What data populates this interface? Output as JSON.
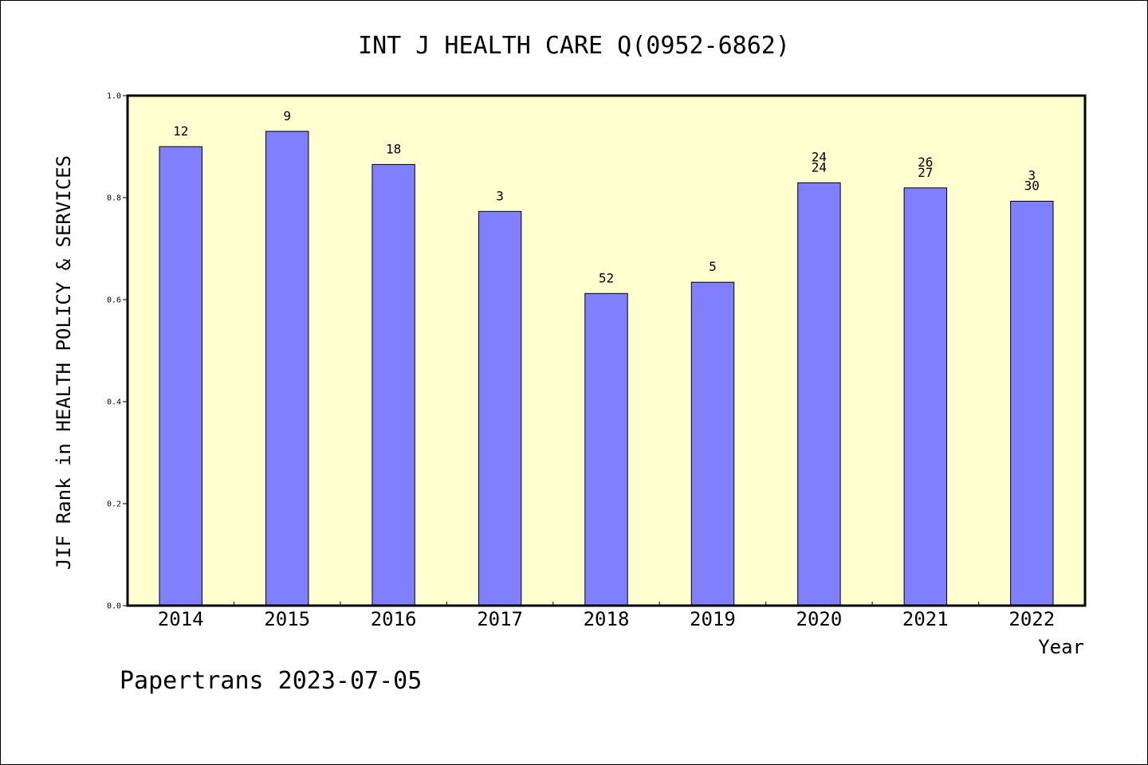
{
  "chart_data": {
    "type": "bar",
    "title": "INT J HEALTH CARE Q(0952-6862)",
    "ylabel": "JIF Rank in HEALTH POLICY & SERVICES",
    "xlabel": "Year",
    "ylim": [
      0,
      1.0
    ],
    "yticks": [
      "0.0",
      "0.2",
      "0.4",
      "0.6",
      "0.8",
      "1.0"
    ],
    "categories": [
      "2014",
      "2015",
      "2016",
      "2017",
      "2018",
      "2019",
      "2020",
      "2021",
      "2022"
    ],
    "values": [
      0.9,
      0.93,
      0.865,
      0.773,
      0.612,
      0.634,
      0.829,
      0.819,
      0.793
    ],
    "bar_labels": [
      [
        "12"
      ],
      [
        "9"
      ],
      [
        "18"
      ],
      [
        "3"
      ],
      [
        "52"
      ],
      [
        "5"
      ],
      [
        "24",
        "24"
      ],
      [
        "26",
        "27"
      ],
      [
        "3",
        "30"
      ]
    ],
    "grid": false,
    "colors": {
      "bar_fill": "#8080ff",
      "plot_background": "#ffffd0",
      "axis": "#000000"
    }
  },
  "footer": "Papertrans 2023-07-05"
}
